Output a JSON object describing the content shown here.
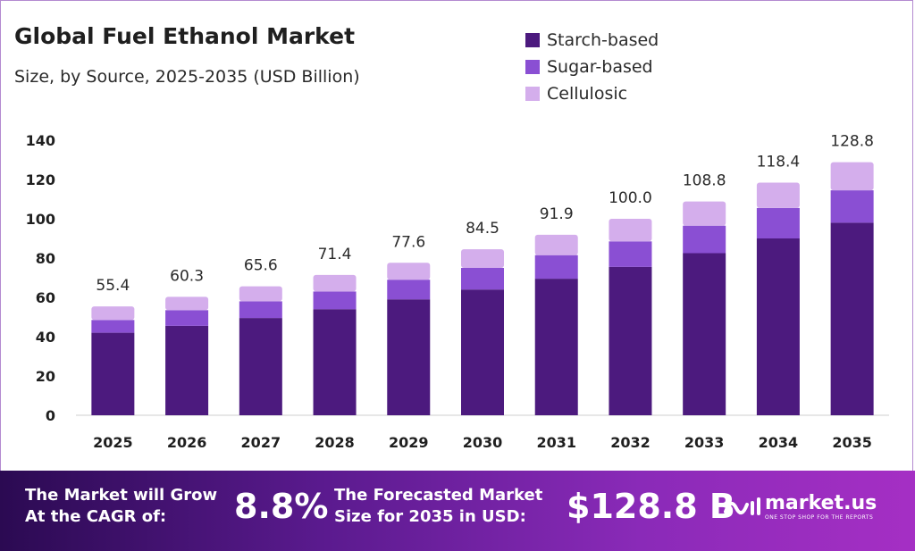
{
  "header": {
    "title": "Global Fuel Ethanol Market",
    "subtitle": "Size, by Source, 2025-2035 (USD Billion)"
  },
  "colors": {
    "starch": "#4c1a7e",
    "sugar": "#8a4fd3",
    "cellulosic": "#d4aeec"
  },
  "chart_data": {
    "type": "bar",
    "stacked": true,
    "categories": [
      "2025",
      "2026",
      "2027",
      "2028",
      "2029",
      "2030",
      "2031",
      "2032",
      "2033",
      "2034",
      "2035"
    ],
    "series": [
      {
        "name": "Starch-based",
        "values": [
          42,
          45.5,
          49.5,
          54,
          59,
          64,
          69.5,
          75.5,
          82.5,
          90,
          98
        ]
      },
      {
        "name": "Sugar-based",
        "values": [
          6.5,
          8,
          8.5,
          9,
          10,
          11,
          12,
          13,
          14,
          15.5,
          16.5
        ]
      },
      {
        "name": "Cellulosic",
        "values": [
          6.9,
          6.8,
          7.6,
          8.4,
          8.6,
          9.5,
          10.4,
          11.5,
          12.3,
          12.9,
          14.3
        ]
      }
    ],
    "totals": [
      "55.4",
      "60.3",
      "65.6",
      "71.4",
      "77.6",
      "84.5",
      "91.9",
      "100.0",
      "108.8",
      "118.4",
      "128.8"
    ],
    "yticks": [
      0,
      20,
      40,
      60,
      80,
      100,
      120,
      140
    ],
    "ylim": [
      0,
      140
    ],
    "grid": false,
    "legend": "top-right"
  },
  "footer": {
    "cagr_label_line1": "The Market will Grow",
    "cagr_label_line2": "At the CAGR of:",
    "cagr_value": "8.8%",
    "forecast_label_line1": "The Forecasted Market",
    "forecast_label_line2": "Size for 2035 in USD:",
    "forecast_value": "$128.8 B",
    "brand_name": "market.us",
    "brand_tagline": "ONE STOP SHOP FOR THE REPORTS"
  }
}
